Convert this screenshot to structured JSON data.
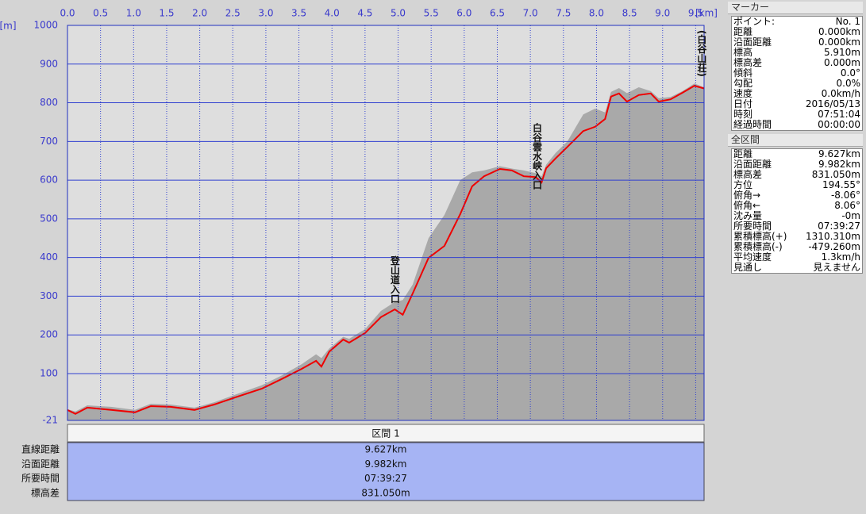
{
  "chart_data": {
    "type": "line",
    "x_unit": "[km]",
    "y_unit": "[m]",
    "xlim": [
      0,
      9.627
    ],
    "ylim": [
      -21,
      1000
    ],
    "xticks": [
      {
        "value": 0,
        "label": "0.0"
      },
      0.5,
      {
        "value": 1,
        "label": "1.0"
      },
      1.5,
      {
        "value": 2,
        "label": "2.0"
      },
      2.5,
      {
        "value": 3,
        "label": "3.0"
      },
      3.5,
      {
        "value": 4,
        "label": "4.0"
      },
      4.5,
      {
        "value": 5,
        "label": "5.0"
      },
      5.5,
      {
        "value": 6,
        "label": "6.0"
      },
      6.5,
      {
        "value": 7,
        "label": "7.0"
      },
      7.5,
      {
        "value": 8,
        "label": "8.0"
      },
      8.5,
      {
        "value": 9,
        "label": "9.0"
      },
      9.5
    ],
    "yticks": [
      -21,
      100,
      200,
      300,
      400,
      500,
      600,
      700,
      800,
      900,
      1000
    ],
    "grid": true,
    "x": [
      0,
      0.12,
      0.3,
      0.66,
      1.02,
      1.26,
      1.56,
      1.92,
      2.22,
      2.58,
      2.94,
      3.24,
      3.54,
      3.76,
      3.84,
      3.96,
      4.17,
      4.26,
      4.5,
      4.74,
      4.95,
      5.07,
      5.22,
      5.46,
      5.7,
      5.94,
      6.12,
      6.3,
      6.54,
      6.72,
      6.9,
      7.08,
      7.17,
      7.24,
      7.38,
      7.56,
      7.8,
      7.98,
      8.13,
      8.22,
      8.34,
      8.46,
      8.64,
      8.82,
      8.94,
      9.12,
      9.3,
      9.48,
      9.627
    ],
    "series": [
      {
        "kind": "area",
        "color": "#a9a9a9",
        "values": [
          8,
          2,
          18,
          14,
          6,
          22,
          20,
          12,
          26,
          48,
          70,
          95,
          124,
          150,
          140,
          165,
          195,
          190,
          215,
          262,
          285,
          290,
          330,
          450,
          510,
          600,
          620,
          625,
          636,
          630,
          625,
          618,
          610,
          640,
          670,
          700,
          770,
          785,
          775,
          828,
          838,
          825,
          840,
          830,
          812,
          815,
          830,
          850,
          840
        ]
      },
      {
        "kind": "line",
        "color": "#ee0000",
        "values": [
          5.91,
          -4,
          12,
          6,
          0,
          16,
          14,
          6,
          20,
          41,
          61,
          86,
          112,
          133,
          118,
          157,
          188,
          180,
          205,
          246,
          266,
          252,
          307,
          399,
          430,
          512,
          584,
          610,
          629,
          625,
          610,
          608,
          594,
          631,
          656,
          686,
          727,
          738,
          758,
          816,
          824,
          803,
          820,
          824,
          803,
          809,
          826,
          844,
          836.96
        ]
      }
    ],
    "annotations": [
      {
        "text": "登山道入口",
        "x": 4.95,
        "y": 405
      },
      {
        "text": "白谷雲水峡入口",
        "x": 7.1,
        "y": 748
      },
      {
        "text": "(白谷山荘)",
        "x": 9.59,
        "y": 988
      }
    ]
  },
  "summary_table": {
    "header": "区間 1",
    "rows": [
      [
        "直線距離",
        "9.627km"
      ],
      [
        "沿面距離",
        "9.982km"
      ],
      [
        "所要時間",
        "07:39:27"
      ],
      [
        "標高差",
        "831.050m"
      ]
    ]
  },
  "marker_panel": {
    "title": "マーカー",
    "rows": [
      [
        "ポイント:",
        "No. 1"
      ],
      [
        "距離",
        "0.000km"
      ],
      [
        "沿面距離",
        "0.000km"
      ],
      [
        "標高",
        "5.910m"
      ],
      [
        "標高差",
        "0.000m"
      ],
      [
        "傾斜",
        "0.0°"
      ],
      [
        "勾配",
        "0.0%"
      ],
      [
        "速度",
        "0.0km/h"
      ],
      [
        "日付",
        "2016/05/13"
      ],
      [
        "時刻",
        "07:51:04"
      ],
      [
        "経過時間",
        "00:00:00"
      ]
    ]
  },
  "total_panel": {
    "title": "全区間",
    "rows": [
      [
        "距離",
        "9.627km"
      ],
      [
        "沿面距離",
        "9.982km"
      ],
      [
        "標高差",
        "831.050m"
      ],
      [
        "方位",
        "194.55°"
      ],
      [
        "俯角→",
        "-8.06°"
      ],
      [
        "俯角←",
        "8.06°"
      ],
      [
        "沈み量",
        "-0m"
      ],
      [
        "所要時間",
        "07:39:27"
      ],
      [
        "累積標高(+)",
        "1310.310m"
      ],
      [
        "累積標高(-)",
        "-479.260m"
      ],
      [
        "平均速度",
        "1.3km/h"
      ],
      [
        "見通し",
        "見えません"
      ]
    ]
  }
}
